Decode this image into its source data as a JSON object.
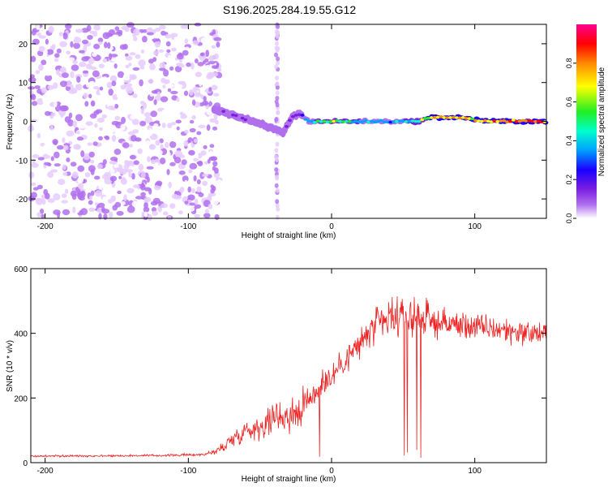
{
  "title": "S196.2025.284.19.55.G12",
  "colors": {
    "snr_line": "#ee2222",
    "axis": "#000000",
    "colormap": [
      "#ffffff",
      "#e6ccff",
      "#b070ee",
      "#7a1fe0",
      "#1a00ff",
      "#00a0ff",
      "#00ffcc",
      "#22ee22",
      "#ffff00",
      "#ff8800",
      "#ff0000",
      "#ff0090"
    ]
  },
  "chart_data": [
    {
      "type": "heatmap",
      "name": "spectrogram",
      "xlabel": "Height of straight line (km)",
      "ylabel": "Frequency (Hz)",
      "xlim": [
        -210,
        150
      ],
      "ylim": [
        -25,
        25
      ],
      "xticks": [
        -200,
        -100,
        0,
        100
      ],
      "xtick_labels": [
        "-200",
        "-100",
        "0",
        "100"
      ],
      "yticks": [
        -20,
        -10,
        0,
        10,
        20
      ],
      "ytick_labels": [
        "-20",
        "-10",
        "0",
        "10",
        "20"
      ],
      "colorbar": {
        "label": "Normalized spectral amplitude",
        "range": [
          0,
          1
        ],
        "ticks": [
          0.0,
          0.2,
          0.4,
          0.6,
          0.8
        ],
        "tick_labels": [
          "0.0",
          "0.2",
          "0.4",
          "0.6",
          "0.8"
        ]
      },
      "ridge": {
        "x": [
          -80,
          -72,
          -64,
          -56,
          -48,
          -40,
          -34,
          -28,
          -22,
          -16,
          -8,
          0,
          20,
          40,
          60,
          70,
          90,
          110,
          130,
          150
        ],
        "freq": [
          3,
          2,
          1,
          0,
          -1,
          -2,
          -3,
          1,
          2,
          0,
          0,
          0,
          0,
          0,
          0,
          1,
          1,
          0,
          0,
          0
        ],
        "amplitude": [
          0.2,
          0.22,
          0.25,
          0.22,
          0.2,
          0.18,
          0.2,
          0.3,
          0.35,
          0.4,
          0.6,
          0.7,
          0.5,
          0.45,
          0.55,
          0.8,
          0.75,
          0.82,
          0.85,
          0.85
        ]
      }
    },
    {
      "type": "line",
      "name": "snr",
      "xlabel": "Height of straight line (km)",
      "ylabel": "SNR (10 * v/v)",
      "xlim": [
        -210,
        150
      ],
      "ylim": [
        0,
        600
      ],
      "xticks": [
        -200,
        -100,
        0,
        100
      ],
      "xtick_labels": [
        "-200",
        "-100",
        "0",
        "100"
      ],
      "yticks": [
        0,
        200,
        400,
        600
      ],
      "ytick_labels": [
        "0",
        "200",
        "400",
        "600"
      ],
      "series": [
        {
          "name": "SNR",
          "envelope_x": [
            -210,
            -120,
            -90,
            -80,
            -70,
            -60,
            -50,
            -40,
            -30,
            -20,
            -10,
            0,
            10,
            20,
            30,
            40,
            60,
            80,
            100,
            120,
            140,
            150
          ],
          "mean": [
            20,
            22,
            25,
            35,
            70,
            100,
            110,
            140,
            150,
            170,
            230,
            270,
            320,
            370,
            420,
            440,
            450,
            430,
            420,
            410,
            400,
            400
          ],
          "spread": [
            8,
            8,
            10,
            30,
            60,
            80,
            90,
            120,
            130,
            140,
            120,
            110,
            110,
            120,
            140,
            150,
            130,
            110,
            100,
            100,
            90,
            80
          ]
        }
      ]
    }
  ]
}
